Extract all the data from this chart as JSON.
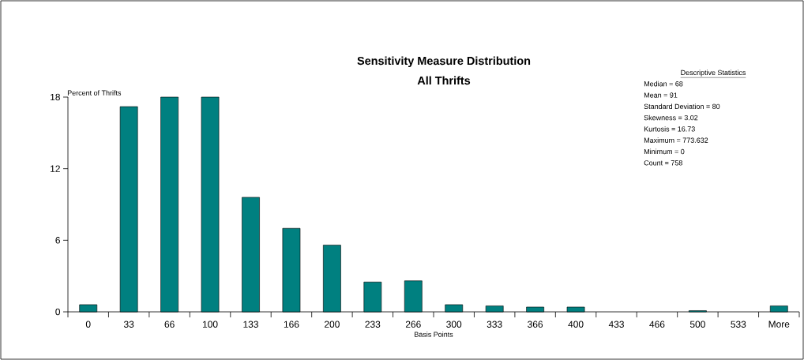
{
  "chart_data": {
    "type": "bar",
    "title": "Sensitivity Measure Distribution",
    "subtitle": "All Thrifts",
    "xlabel": "Basis Points",
    "ylabel": "Percent of Thrifts",
    "categories": [
      "0",
      "33",
      "66",
      "100",
      "133",
      "166",
      "200",
      "233",
      "266",
      "300",
      "333",
      "366",
      "400",
      "433",
      "466",
      "500",
      "533",
      "More"
    ],
    "values": [
      0.6,
      17.2,
      18,
      18,
      9.6,
      7.0,
      5.6,
      2.5,
      2.6,
      0.6,
      0.5,
      0.4,
      0.4,
      0,
      0,
      0.1,
      0,
      0.5
    ],
    "color": "#008080",
    "ylim": [
      0,
      18
    ],
    "yticks": [
      0,
      6,
      12,
      18
    ],
    "annotations": [
      "Descriptive Statistics",
      "Median = 68",
      "Mean = 91",
      "Standard Deviation = 80",
      "Skewness = 3.02",
      "Kurtosis = 16.73",
      "Maximum = 773.632",
      "Minimum = 0",
      "Count = 758"
    ]
  }
}
